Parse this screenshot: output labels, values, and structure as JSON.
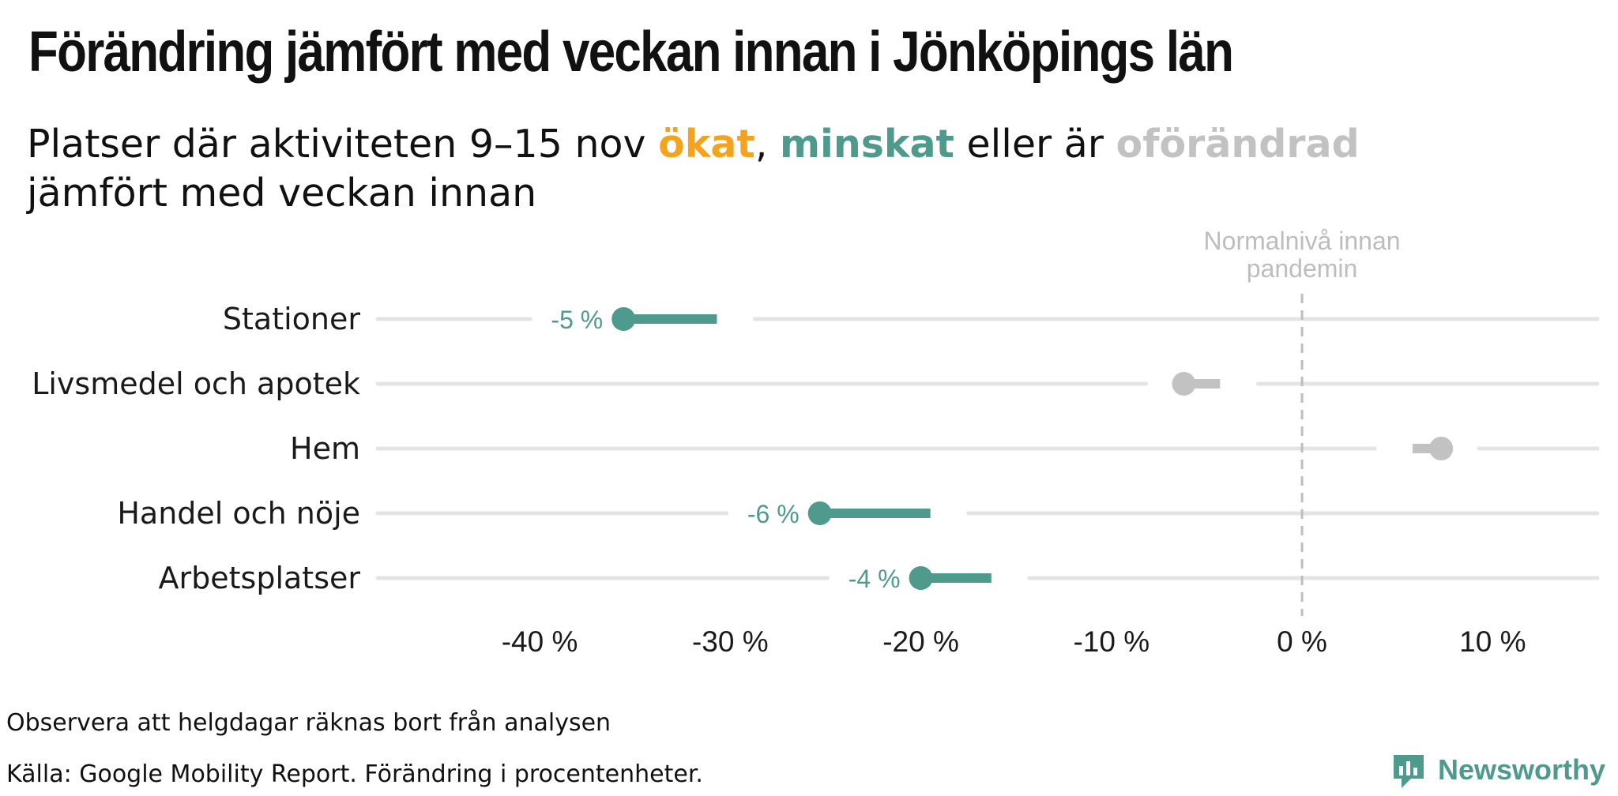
{
  "title": "Förändring jämfört med veckan innan i Jönköpings län",
  "subtitle": {
    "part1": "Platser där aktiviteten 9–15 nov ",
    "up_word": "ökat",
    "part2": ", ",
    "down_word": "minskat",
    "part3": " eller är ",
    "same_word": "oförändrad",
    "line2": "jämfört med veckan innan"
  },
  "colors": {
    "increase": "#F5A21E",
    "decrease": "#4E9A8C",
    "unchanged": "#C2C2C2",
    "track": "#E4E4E4",
    "reference": "#BDBDBD"
  },
  "chart_data": {
    "type": "dumbbell",
    "xlim": [
      -48.5,
      15.5
    ],
    "x_ticks": [
      -40,
      -30,
      -20,
      -10,
      0,
      10
    ],
    "x_tick_labels": [
      "-40 %",
      "-30 %",
      "-20 %",
      "-10 %",
      "0 %",
      "10 %"
    ],
    "reference_line": {
      "x": 0,
      "label_line1": "Normalnivå innan",
      "label_line2": "pandemin"
    },
    "categories": [
      "Stationer",
      "Livsmedel och apotek",
      "Hem",
      "Handel och nöje",
      "Arbetsplatser"
    ],
    "rows": [
      {
        "name": "Stationer",
        "previous": -30.7,
        "current": -35.6,
        "status": "decrease",
        "label": "-5 %"
      },
      {
        "name": "Livsmedel och apotek",
        "previous": -4.3,
        "current": -6.2,
        "status": "unchanged",
        "label": ""
      },
      {
        "name": "Hem",
        "previous": 5.8,
        "current": 7.3,
        "status": "unchanged",
        "label": ""
      },
      {
        "name": "Handel och nöje",
        "previous": -19.5,
        "current": -25.3,
        "status": "decrease",
        "label": "-6 %"
      },
      {
        "name": "Arbetsplatser",
        "previous": -16.3,
        "current": -20.0,
        "status": "decrease",
        "label": "-4 %"
      }
    ]
  },
  "footnotes": {
    "note": "Observera att helgdagar räknas bort från analysen",
    "source": "Källa: Google Mobility Report. Förändring i procentenheter."
  },
  "brand": {
    "name": "Newsworthy",
    "icon": "newsworthy-logo-icon"
  }
}
